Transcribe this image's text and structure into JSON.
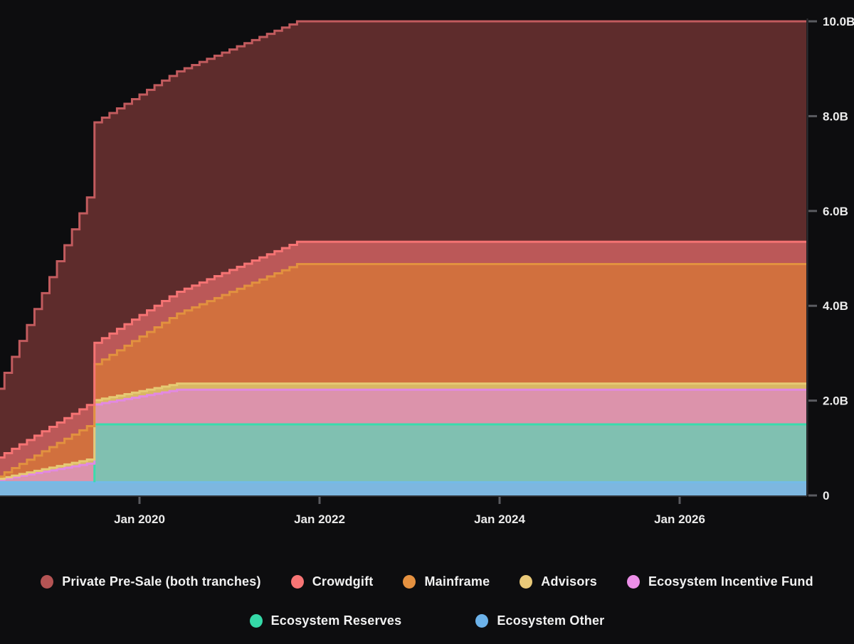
{
  "chart": {
    "total_supply_label": "10.0B",
    "background": "#0d0d0f",
    "axis_text_color": "#ececec",
    "tick_mark_color": "#5a5b60",
    "axis_line_color": "#2e2f33"
  },
  "chart_data": {
    "type": "area",
    "stacked": true,
    "title": "",
    "unit": "tokens (billions)",
    "x_range": {
      "start": "Jun 2018",
      "end": "Jun 2027"
    },
    "ylim": [
      0,
      10.2
    ],
    "grid": false,
    "legend_position": "bottom",
    "y_axis": {
      "ticks": [
        {
          "v": 0,
          "label": "0"
        },
        {
          "v": 2,
          "label": "2.0B"
        },
        {
          "v": 4,
          "label": "4.0B"
        },
        {
          "v": 6,
          "label": "6.0B"
        },
        {
          "v": 8,
          "label": "8.0B"
        },
        {
          "v": 10,
          "label": "10.0B"
        }
      ]
    },
    "x_axis": {
      "ticks": [
        {
          "months_from_jan2020": 0,
          "label": "Jan 2020"
        },
        {
          "months_from_jan2020": 24,
          "label": "Jan 2022"
        },
        {
          "months_from_jan2020": 48,
          "label": "Jan 2024"
        },
        {
          "months_from_jan2020": 72,
          "label": "Jan 2026"
        }
      ]
    },
    "interpolation": "monthly-steps",
    "series_note": "bottom-to-top stacking order; breakpoints are [months relative to Jan 2020, billions of tokens]; values step monthly between breakpoints; big cliff unlock at Jul 2019 (-6)",
    "series": [
      {
        "key": "other",
        "label": "Ecosystem Other",
        "final_value_b": 0.28,
        "legend_color": "#6cb2ea",
        "stroke": "#74bbe8",
        "fill": "#7db7e0",
        "breakpoints": [
          [
            -19,
            0.28
          ],
          [
            90,
            0.28
          ]
        ]
      },
      {
        "key": "reserves",
        "label": "Ecosystem Reserves",
        "final_value_b": 1.22,
        "legend_color": "#35d9a8",
        "stroke": "#38dcac",
        "fill": "#80c0b1",
        "stroke_from": -6,
        "breakpoints": [
          [
            -19,
            0
          ],
          [
            -6.01,
            0
          ],
          [
            -6,
            1.22
          ],
          [
            90,
            1.22
          ]
        ]
      },
      {
        "key": "incentive",
        "label": "Ecosystem Incentive Fund",
        "final_value_b": 0.73,
        "legend_color": "#ec8fe8",
        "stroke": "#e289e2",
        "fill": "#dc93ab",
        "breakpoints": [
          [
            -19,
            0.05
          ],
          [
            -6,
            0.42
          ],
          [
            5,
            0.73
          ],
          [
            90,
            0.73
          ]
        ]
      },
      {
        "key": "advisors",
        "label": "Advisors",
        "final_value_b": 0.13,
        "legend_color": "#e9c979",
        "stroke": "#e6ca74",
        "fill": "#d9b763",
        "breakpoints": [
          [
            -19,
            0.02
          ],
          [
            -6,
            0.09
          ],
          [
            5,
            0.13
          ],
          [
            90,
            0.13
          ]
        ]
      },
      {
        "key": "mainframe",
        "label": "Mainframe",
        "final_value_b": 2.52,
        "legend_color": "#e59140",
        "stroke": "#e2913f",
        "fill": "#d1703e",
        "breakpoints": [
          [
            -19,
            0.05
          ],
          [
            -6,
            0.76
          ],
          [
            21,
            2.52
          ],
          [
            90,
            2.52
          ]
        ]
      },
      {
        "key": "crowdgift",
        "label": "Crowdgift",
        "final_value_b": 0.47,
        "legend_color": "#f77575",
        "stroke": "#f57373",
        "fill": "#bb5858",
        "breakpoints": [
          [
            -19,
            0.4
          ],
          [
            -6,
            0.45
          ],
          [
            21,
            0.47
          ],
          [
            90,
            0.47
          ]
        ]
      },
      {
        "key": "private",
        "label": "Private Pre-Sale (both tranches)",
        "final_value_b": 4.65,
        "legend_color": "#b45454",
        "stroke": "#c25b5e",
        "fill": "#5e2c2c",
        "breakpoints": [
          [
            -19,
            1.45
          ],
          [
            -6.01,
            4.62
          ],
          [
            -6,
            4.65
          ],
          [
            90,
            4.65
          ]
        ]
      }
    ],
    "legend_rows": [
      [
        6,
        5,
        4,
        3,
        2
      ],
      [
        1,
        0
      ]
    ]
  }
}
